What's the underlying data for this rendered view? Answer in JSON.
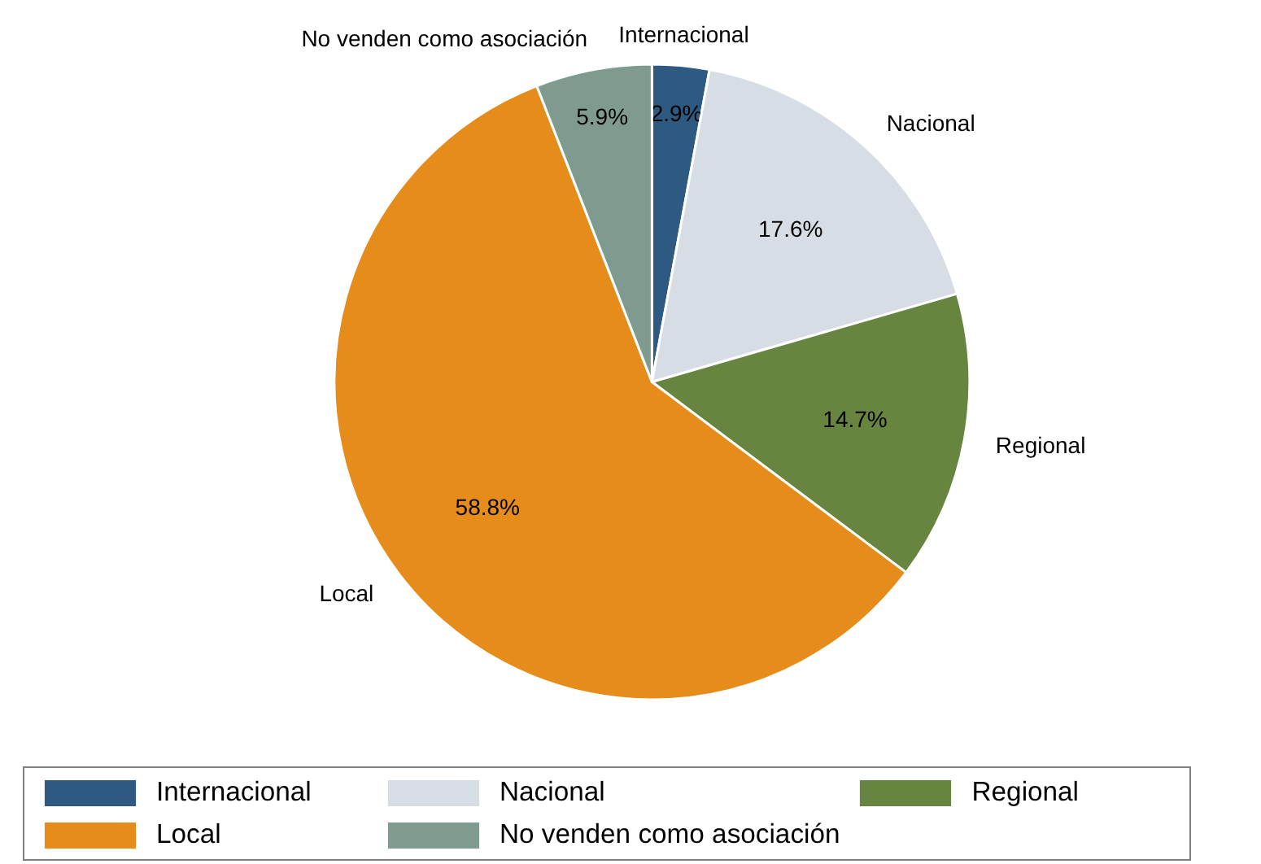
{
  "chart_data": {
    "type": "pie",
    "categories": [
      "Internacional",
      "Nacional",
      "Regional",
      "Local",
      "No venden como asociación"
    ],
    "values": [
      2.9,
      17.6,
      14.7,
      58.8,
      5.9
    ],
    "value_labels": [
      "2.9%",
      "17.6%",
      "14.7%",
      "58.8%",
      "5.9%"
    ],
    "colors": [
      "#2e5a82",
      "#d7dde4",
      "#67853f",
      "#e68c1b",
      "#7f9b8f"
    ],
    "legend": "bottom"
  }
}
